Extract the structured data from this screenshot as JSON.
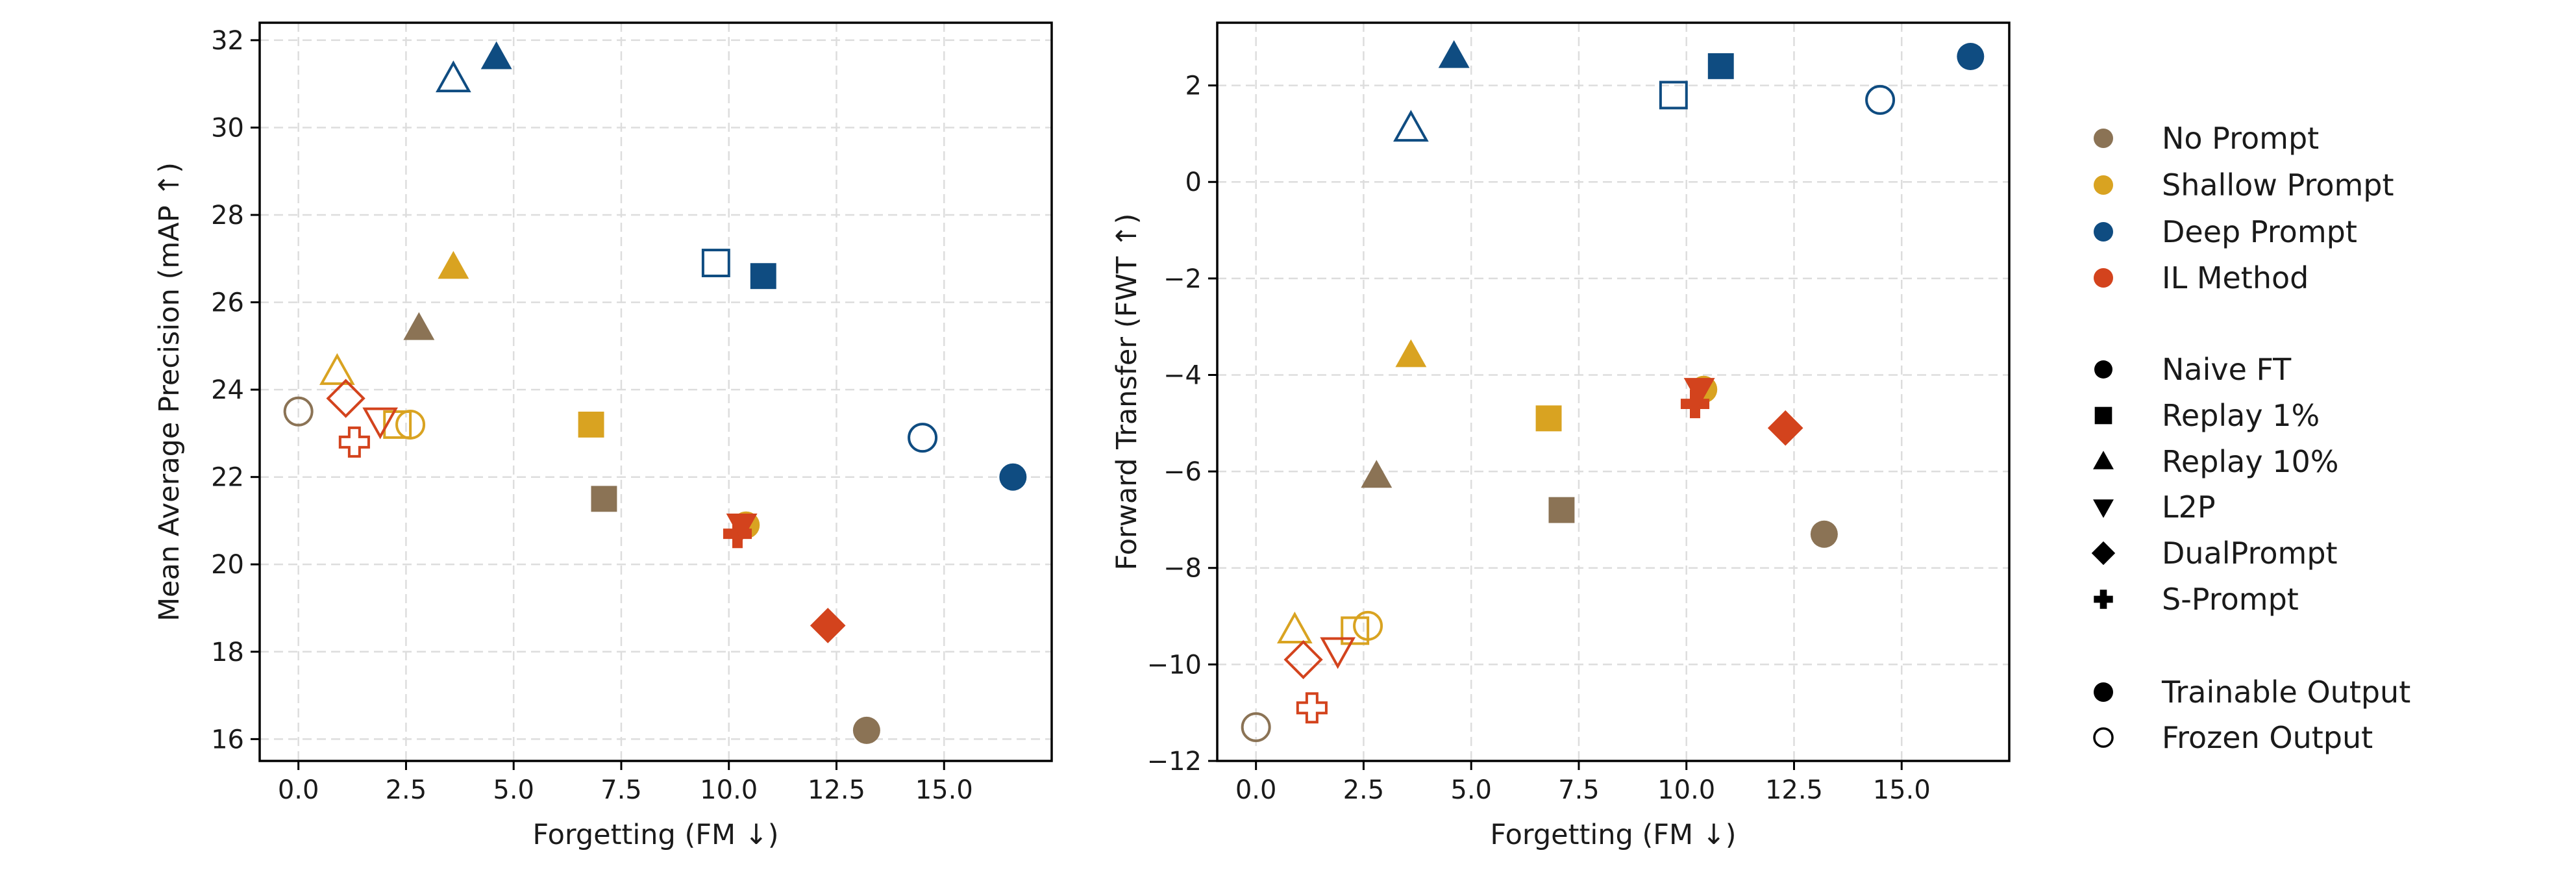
{
  "chart_data": [
    {
      "type": "scatter",
      "xlabel": "Forgetting (FM ↓)",
      "ylabel": "Mean Average Precision (mAP ↑)",
      "xlim": [
        -0.9,
        17.5
      ],
      "ylim": [
        15.5,
        32.4
      ],
      "xticks": [
        0.0,
        2.5,
        5.0,
        7.5,
        10.0,
        12.5,
        15.0
      ],
      "xtick_labels": [
        "0.0",
        "2.5",
        "5.0",
        "7.5",
        "10.0",
        "12.5",
        "15.0"
      ],
      "yticks": [
        16,
        18,
        20,
        22,
        24,
        26,
        28,
        30,
        32
      ],
      "ytick_labels": [
        "16",
        "18",
        "20",
        "22",
        "24",
        "26",
        "28",
        "30",
        "32"
      ],
      "grid": true,
      "points": [
        {
          "group": "No Prompt",
          "method": "Naive FT",
          "output": "Frozen",
          "x": 0.0,
          "y": 23.5
        },
        {
          "group": "No Prompt",
          "method": "Replay 10%",
          "output": "Trainable",
          "x": 2.8,
          "y": 25.4
        },
        {
          "group": "No Prompt",
          "method": "Replay 1%",
          "output": "Trainable",
          "x": 7.1,
          "y": 21.5
        },
        {
          "group": "No Prompt",
          "method": "Naive FT",
          "output": "Trainable",
          "x": 13.2,
          "y": 16.2
        },
        {
          "group": "Shallow Prompt",
          "method": "Replay 10%",
          "output": "Frozen",
          "x": 0.9,
          "y": 24.4
        },
        {
          "group": "Shallow Prompt",
          "method": "Replay 1%",
          "output": "Frozen",
          "x": 2.3,
          "y": 23.2
        },
        {
          "group": "Shallow Prompt",
          "method": "Naive FT",
          "output": "Frozen",
          "x": 2.6,
          "y": 23.2
        },
        {
          "group": "Shallow Prompt",
          "method": "Replay 10%",
          "output": "Trainable",
          "x": 3.6,
          "y": 26.8
        },
        {
          "group": "Shallow Prompt",
          "method": "Replay 1%",
          "output": "Trainable",
          "x": 6.8,
          "y": 23.2
        },
        {
          "group": "Shallow Prompt",
          "method": "Naive FT",
          "output": "Trainable",
          "x": 10.4,
          "y": 20.9
        },
        {
          "group": "Deep Prompt",
          "method": "Replay 10%",
          "output": "Frozen",
          "x": 3.6,
          "y": 31.1
        },
        {
          "group": "Deep Prompt",
          "method": "Replay 10%",
          "output": "Trainable",
          "x": 4.6,
          "y": 31.6
        },
        {
          "group": "Deep Prompt",
          "method": "Replay 1%",
          "output": "Frozen",
          "x": 9.7,
          "y": 26.9
        },
        {
          "group": "Deep Prompt",
          "method": "Replay 1%",
          "output": "Trainable",
          "x": 10.8,
          "y": 26.6
        },
        {
          "group": "Deep Prompt",
          "method": "Naive FT",
          "output": "Frozen",
          "x": 14.5,
          "y": 22.9
        },
        {
          "group": "Deep Prompt",
          "method": "Naive FT",
          "output": "Trainable",
          "x": 16.6,
          "y": 22.0
        },
        {
          "group": "IL Method",
          "method": "DualPrompt",
          "output": "Frozen",
          "x": 1.1,
          "y": 23.8
        },
        {
          "group": "IL Method",
          "method": "S-Prompt",
          "output": "Frozen",
          "x": 1.3,
          "y": 22.8
        },
        {
          "group": "IL Method",
          "method": "L2P",
          "output": "Frozen",
          "x": 1.9,
          "y": 23.3
        },
        {
          "group": "IL Method",
          "method": "S-Prompt",
          "output": "Trainable",
          "x": 10.2,
          "y": 20.7
        },
        {
          "group": "IL Method",
          "method": "L2P",
          "output": "Trainable",
          "x": 10.3,
          "y": 20.9
        },
        {
          "group": "IL Method",
          "method": "DualPrompt",
          "output": "Trainable",
          "x": 12.3,
          "y": 18.6
        }
      ]
    },
    {
      "type": "scatter",
      "xlabel": "Forgetting (FM ↓)",
      "ylabel": "Forward Transfer (FWT ↑)",
      "xlim": [
        -0.9,
        17.5
      ],
      "ylim": [
        -12.0,
        3.3
      ],
      "xticks": [
        0.0,
        2.5,
        5.0,
        7.5,
        10.0,
        12.5,
        15.0
      ],
      "xtick_labels": [
        "0.0",
        "2.5",
        "5.0",
        "7.5",
        "10.0",
        "12.5",
        "15.0"
      ],
      "yticks": [
        -12,
        -10,
        -8,
        -6,
        -4,
        -2,
        0,
        2
      ],
      "ytick_labels": [
        "−12",
        "−10",
        "−8",
        "−6",
        "−4",
        "−2",
        "0",
        "2"
      ],
      "grid": true,
      "points": [
        {
          "group": "No Prompt",
          "method": "Naive FT",
          "output": "Frozen",
          "x": 0.0,
          "y": -11.3
        },
        {
          "group": "No Prompt",
          "method": "Replay 10%",
          "output": "Trainable",
          "x": 2.8,
          "y": -6.1
        },
        {
          "group": "No Prompt",
          "method": "Replay 1%",
          "output": "Trainable",
          "x": 7.1,
          "y": -6.8
        },
        {
          "group": "No Prompt",
          "method": "Naive FT",
          "output": "Trainable",
          "x": 13.2,
          "y": -7.3
        },
        {
          "group": "Shallow Prompt",
          "method": "Replay 10%",
          "output": "Frozen",
          "x": 0.9,
          "y": -9.3
        },
        {
          "group": "Shallow Prompt",
          "method": "Replay 1%",
          "output": "Frozen",
          "x": 2.3,
          "y": -9.3
        },
        {
          "group": "Shallow Prompt",
          "method": "Naive FT",
          "output": "Frozen",
          "x": 2.6,
          "y": -9.2
        },
        {
          "group": "Shallow Prompt",
          "method": "Replay 10%",
          "output": "Trainable",
          "x": 3.6,
          "y": -3.6
        },
        {
          "group": "Shallow Prompt",
          "method": "Replay 1%",
          "output": "Trainable",
          "x": 6.8,
          "y": -4.9
        },
        {
          "group": "Shallow Prompt",
          "method": "Naive FT",
          "output": "Trainable",
          "x": 10.4,
          "y": -4.3
        },
        {
          "group": "Deep Prompt",
          "method": "Replay 10%",
          "output": "Frozen",
          "x": 3.6,
          "y": 1.1
        },
        {
          "group": "Deep Prompt",
          "method": "Replay 10%",
          "output": "Trainable",
          "x": 4.6,
          "y": 2.6
        },
        {
          "group": "Deep Prompt",
          "method": "Replay 1%",
          "output": "Frozen",
          "x": 9.7,
          "y": 1.8
        },
        {
          "group": "Deep Prompt",
          "method": "Replay 1%",
          "output": "Trainable",
          "x": 10.8,
          "y": 2.4
        },
        {
          "group": "Deep Prompt",
          "method": "Naive FT",
          "output": "Frozen",
          "x": 14.5,
          "y": 1.7
        },
        {
          "group": "Deep Prompt",
          "method": "Naive FT",
          "output": "Trainable",
          "x": 16.6,
          "y": 2.6
        },
        {
          "group": "IL Method",
          "method": "DualPrompt",
          "output": "Frozen",
          "x": 1.1,
          "y": -9.9
        },
        {
          "group": "IL Method",
          "method": "S-Prompt",
          "output": "Frozen",
          "x": 1.3,
          "y": -10.9
        },
        {
          "group": "IL Method",
          "method": "L2P",
          "output": "Frozen",
          "x": 1.9,
          "y": -9.7
        },
        {
          "group": "IL Method",
          "method": "S-Prompt",
          "output": "Trainable",
          "x": 10.2,
          "y": -4.6
        },
        {
          "group": "IL Method",
          "method": "L2P",
          "output": "Trainable",
          "x": 10.3,
          "y": -4.3
        },
        {
          "group": "IL Method",
          "method": "DualPrompt",
          "output": "Trainable",
          "x": 12.3,
          "y": -5.1
        }
      ]
    }
  ],
  "legend": {
    "placement": "right",
    "groups": [
      {
        "label": "No Prompt",
        "color": "#8b7355"
      },
      {
        "label": "Shallow Prompt",
        "color": "#d9a321"
      },
      {
        "label": "Deep Prompt",
        "color": "#0f4c81"
      },
      {
        "label": "IL Method",
        "color": "#d3431d"
      }
    ],
    "methods": [
      {
        "label": "Naive FT",
        "marker": "circle"
      },
      {
        "label": "Replay 1%",
        "marker": "square"
      },
      {
        "label": "Replay 10%",
        "marker": "triangle-up"
      },
      {
        "label": "L2P",
        "marker": "triangle-down"
      },
      {
        "label": "DualPrompt",
        "marker": "diamond"
      },
      {
        "label": "S-Prompt",
        "marker": "plus"
      }
    ],
    "outputs": [
      {
        "label": "Trainable Output",
        "fill": "filled"
      },
      {
        "label": "Frozen Output",
        "fill": "hollow"
      }
    ]
  }
}
